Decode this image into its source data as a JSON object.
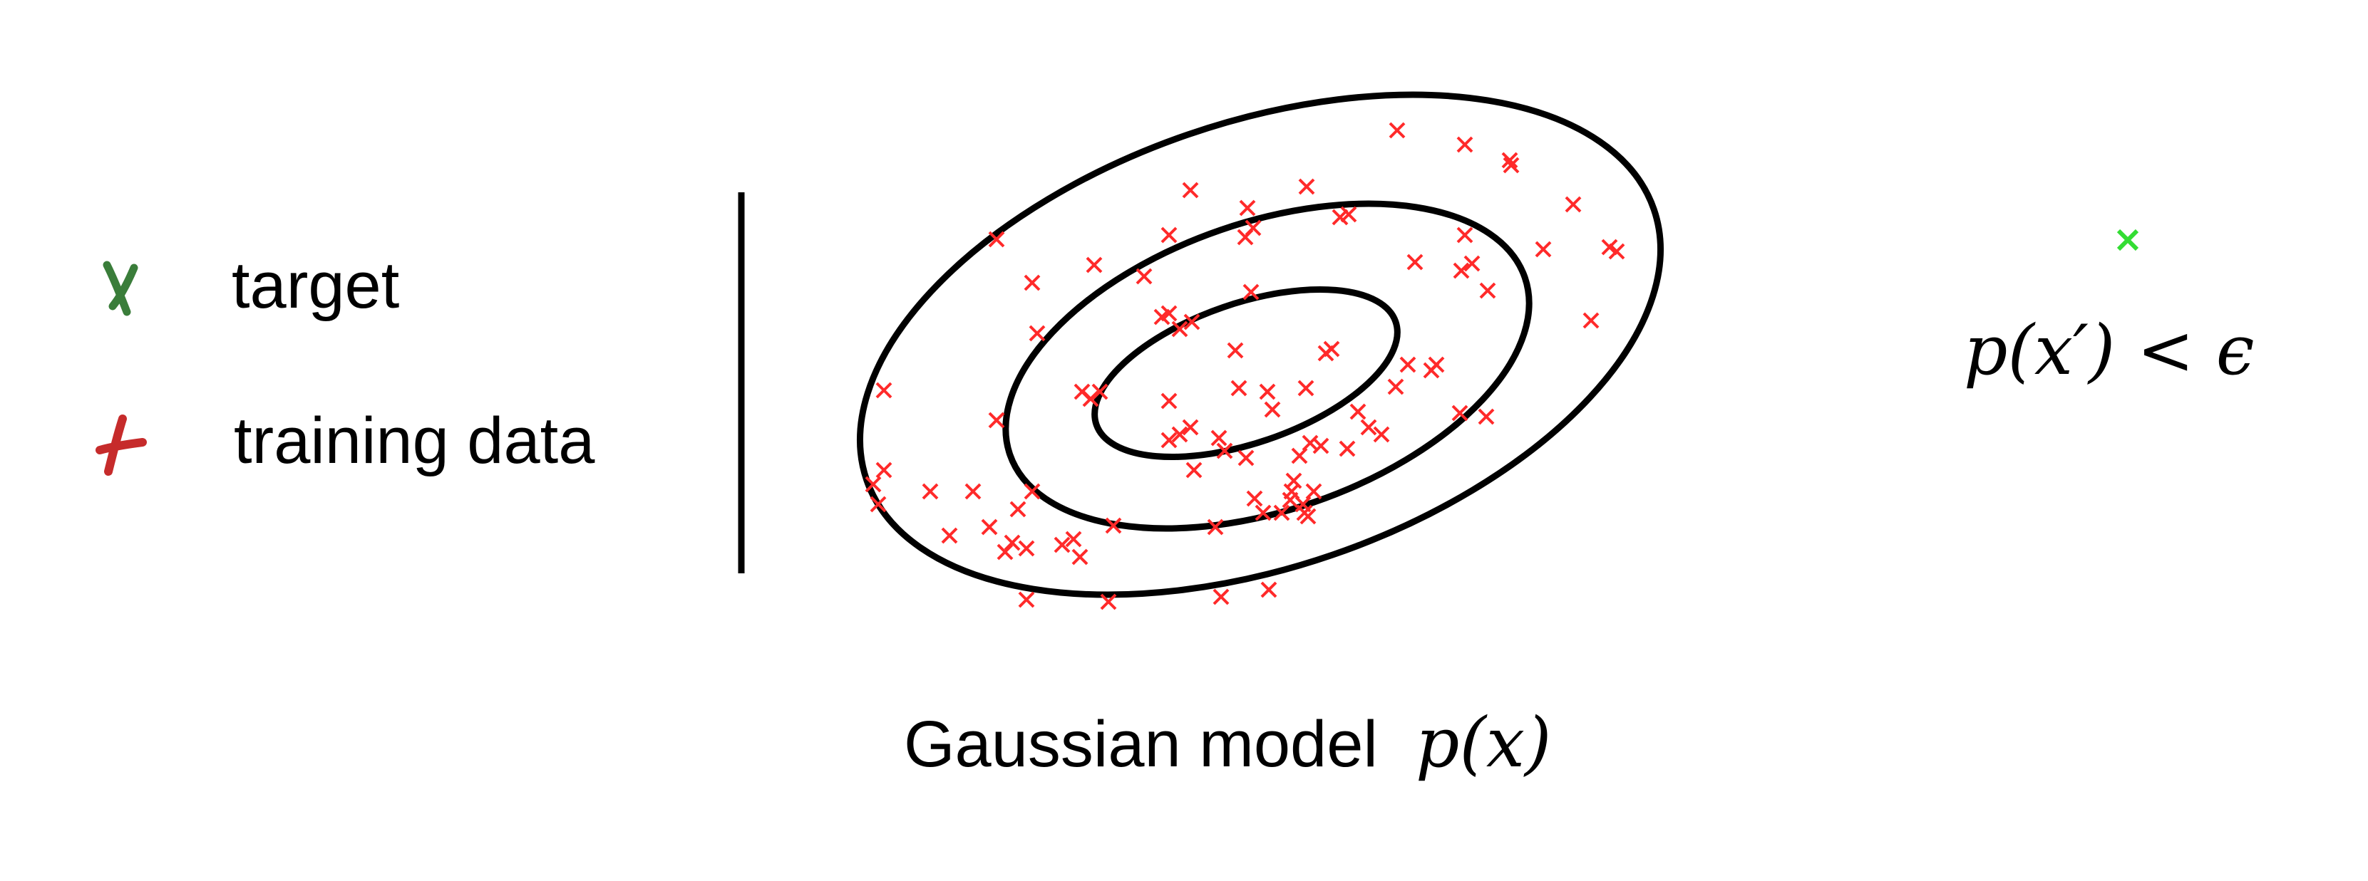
{
  "legend": {
    "items": [
      {
        "label": "target",
        "color": "#3a7d3a",
        "icon": "green-hand-x-icon"
      },
      {
        "label": "training data",
        "color": "#c62b2b",
        "icon": "red-hand-x-icon"
      }
    ]
  },
  "caption": {
    "text": "Gaussian model",
    "math": "p(x)"
  },
  "target_condition": "p(x′) < ϵ",
  "colors": {
    "training_marker": "#ff2a2a",
    "target_marker": "#33dd33",
    "contour": "#000000"
  }
}
